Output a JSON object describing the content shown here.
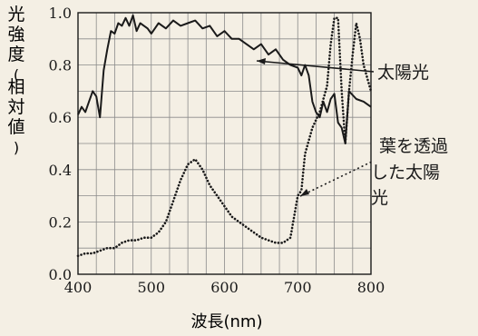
{
  "chart_data": {
    "type": "line",
    "ylabel": "光強度(相対値)",
    "xlabel": "波長(nm)",
    "xlim": [
      400,
      800
    ],
    "ylim": [
      0.0,
      1.0
    ],
    "x_ticks": [
      "400",
      "500",
      "600",
      "700",
      "800"
    ],
    "y_ticks": [
      "0.0",
      "0.2",
      "0.4",
      "0.6",
      "0.8",
      "1.0"
    ],
    "grid": true,
    "series": [
      {
        "name": "太陽光",
        "style": "solid",
        "color": "#1a1a1a",
        "x": [
          400,
          405,
          410,
          415,
          420,
          425,
          430,
          435,
          440,
          445,
          450,
          455,
          460,
          465,
          470,
          475,
          480,
          485,
          490,
          495,
          500,
          505,
          510,
          520,
          530,
          540,
          550,
          560,
          570,
          580,
          590,
          600,
          610,
          620,
          630,
          640,
          650,
          660,
          670,
          680,
          690,
          700,
          705,
          710,
          715,
          720,
          725,
          730,
          735,
          740,
          745,
          750,
          755,
          760,
          765,
          770,
          780,
          790,
          800
        ],
        "y": [
          0.61,
          0.64,
          0.62,
          0.66,
          0.7,
          0.68,
          0.6,
          0.78,
          0.86,
          0.93,
          0.92,
          0.96,
          0.95,
          0.98,
          0.95,
          0.99,
          0.93,
          0.96,
          0.95,
          0.94,
          0.92,
          0.94,
          0.96,
          0.94,
          0.97,
          0.95,
          0.96,
          0.97,
          0.94,
          0.95,
          0.91,
          0.93,
          0.9,
          0.9,
          0.88,
          0.86,
          0.88,
          0.84,
          0.86,
          0.82,
          0.8,
          0.79,
          0.76,
          0.8,
          0.76,
          0.66,
          0.62,
          0.6,
          0.66,
          0.62,
          0.67,
          0.69,
          0.58,
          0.56,
          0.5,
          0.7,
          0.67,
          0.66,
          0.64
        ]
      },
      {
        "name": "葉を透過した太陽光",
        "style": "dotted",
        "color": "#1a1a1a",
        "x": [
          400,
          410,
          420,
          430,
          440,
          450,
          460,
          470,
          480,
          490,
          500,
          510,
          520,
          530,
          540,
          550,
          560,
          570,
          580,
          590,
          600,
          610,
          620,
          630,
          640,
          650,
          660,
          670,
          680,
          690,
          700,
          705,
          710,
          720,
          730,
          740,
          745,
          750,
          755,
          760,
          765,
          770,
          775,
          780,
          785,
          790,
          800
        ],
        "y": [
          0.07,
          0.08,
          0.08,
          0.09,
          0.1,
          0.1,
          0.12,
          0.13,
          0.13,
          0.14,
          0.14,
          0.16,
          0.2,
          0.28,
          0.36,
          0.42,
          0.44,
          0.4,
          0.34,
          0.3,
          0.26,
          0.22,
          0.2,
          0.18,
          0.16,
          0.14,
          0.13,
          0.12,
          0.12,
          0.14,
          0.3,
          0.32,
          0.46,
          0.56,
          0.62,
          0.72,
          0.88,
          0.98,
          0.98,
          0.7,
          0.5,
          0.7,
          0.84,
          0.96,
          0.9,
          0.8,
          0.7
        ]
      }
    ],
    "annotations": [
      {
        "text": "太陽光",
        "lines": [
          "太陽光"
        ]
      },
      {
        "text": "葉を透過した太陽光",
        "lines": [
          "葉を透過",
          "した太陽",
          "光"
        ]
      }
    ]
  }
}
